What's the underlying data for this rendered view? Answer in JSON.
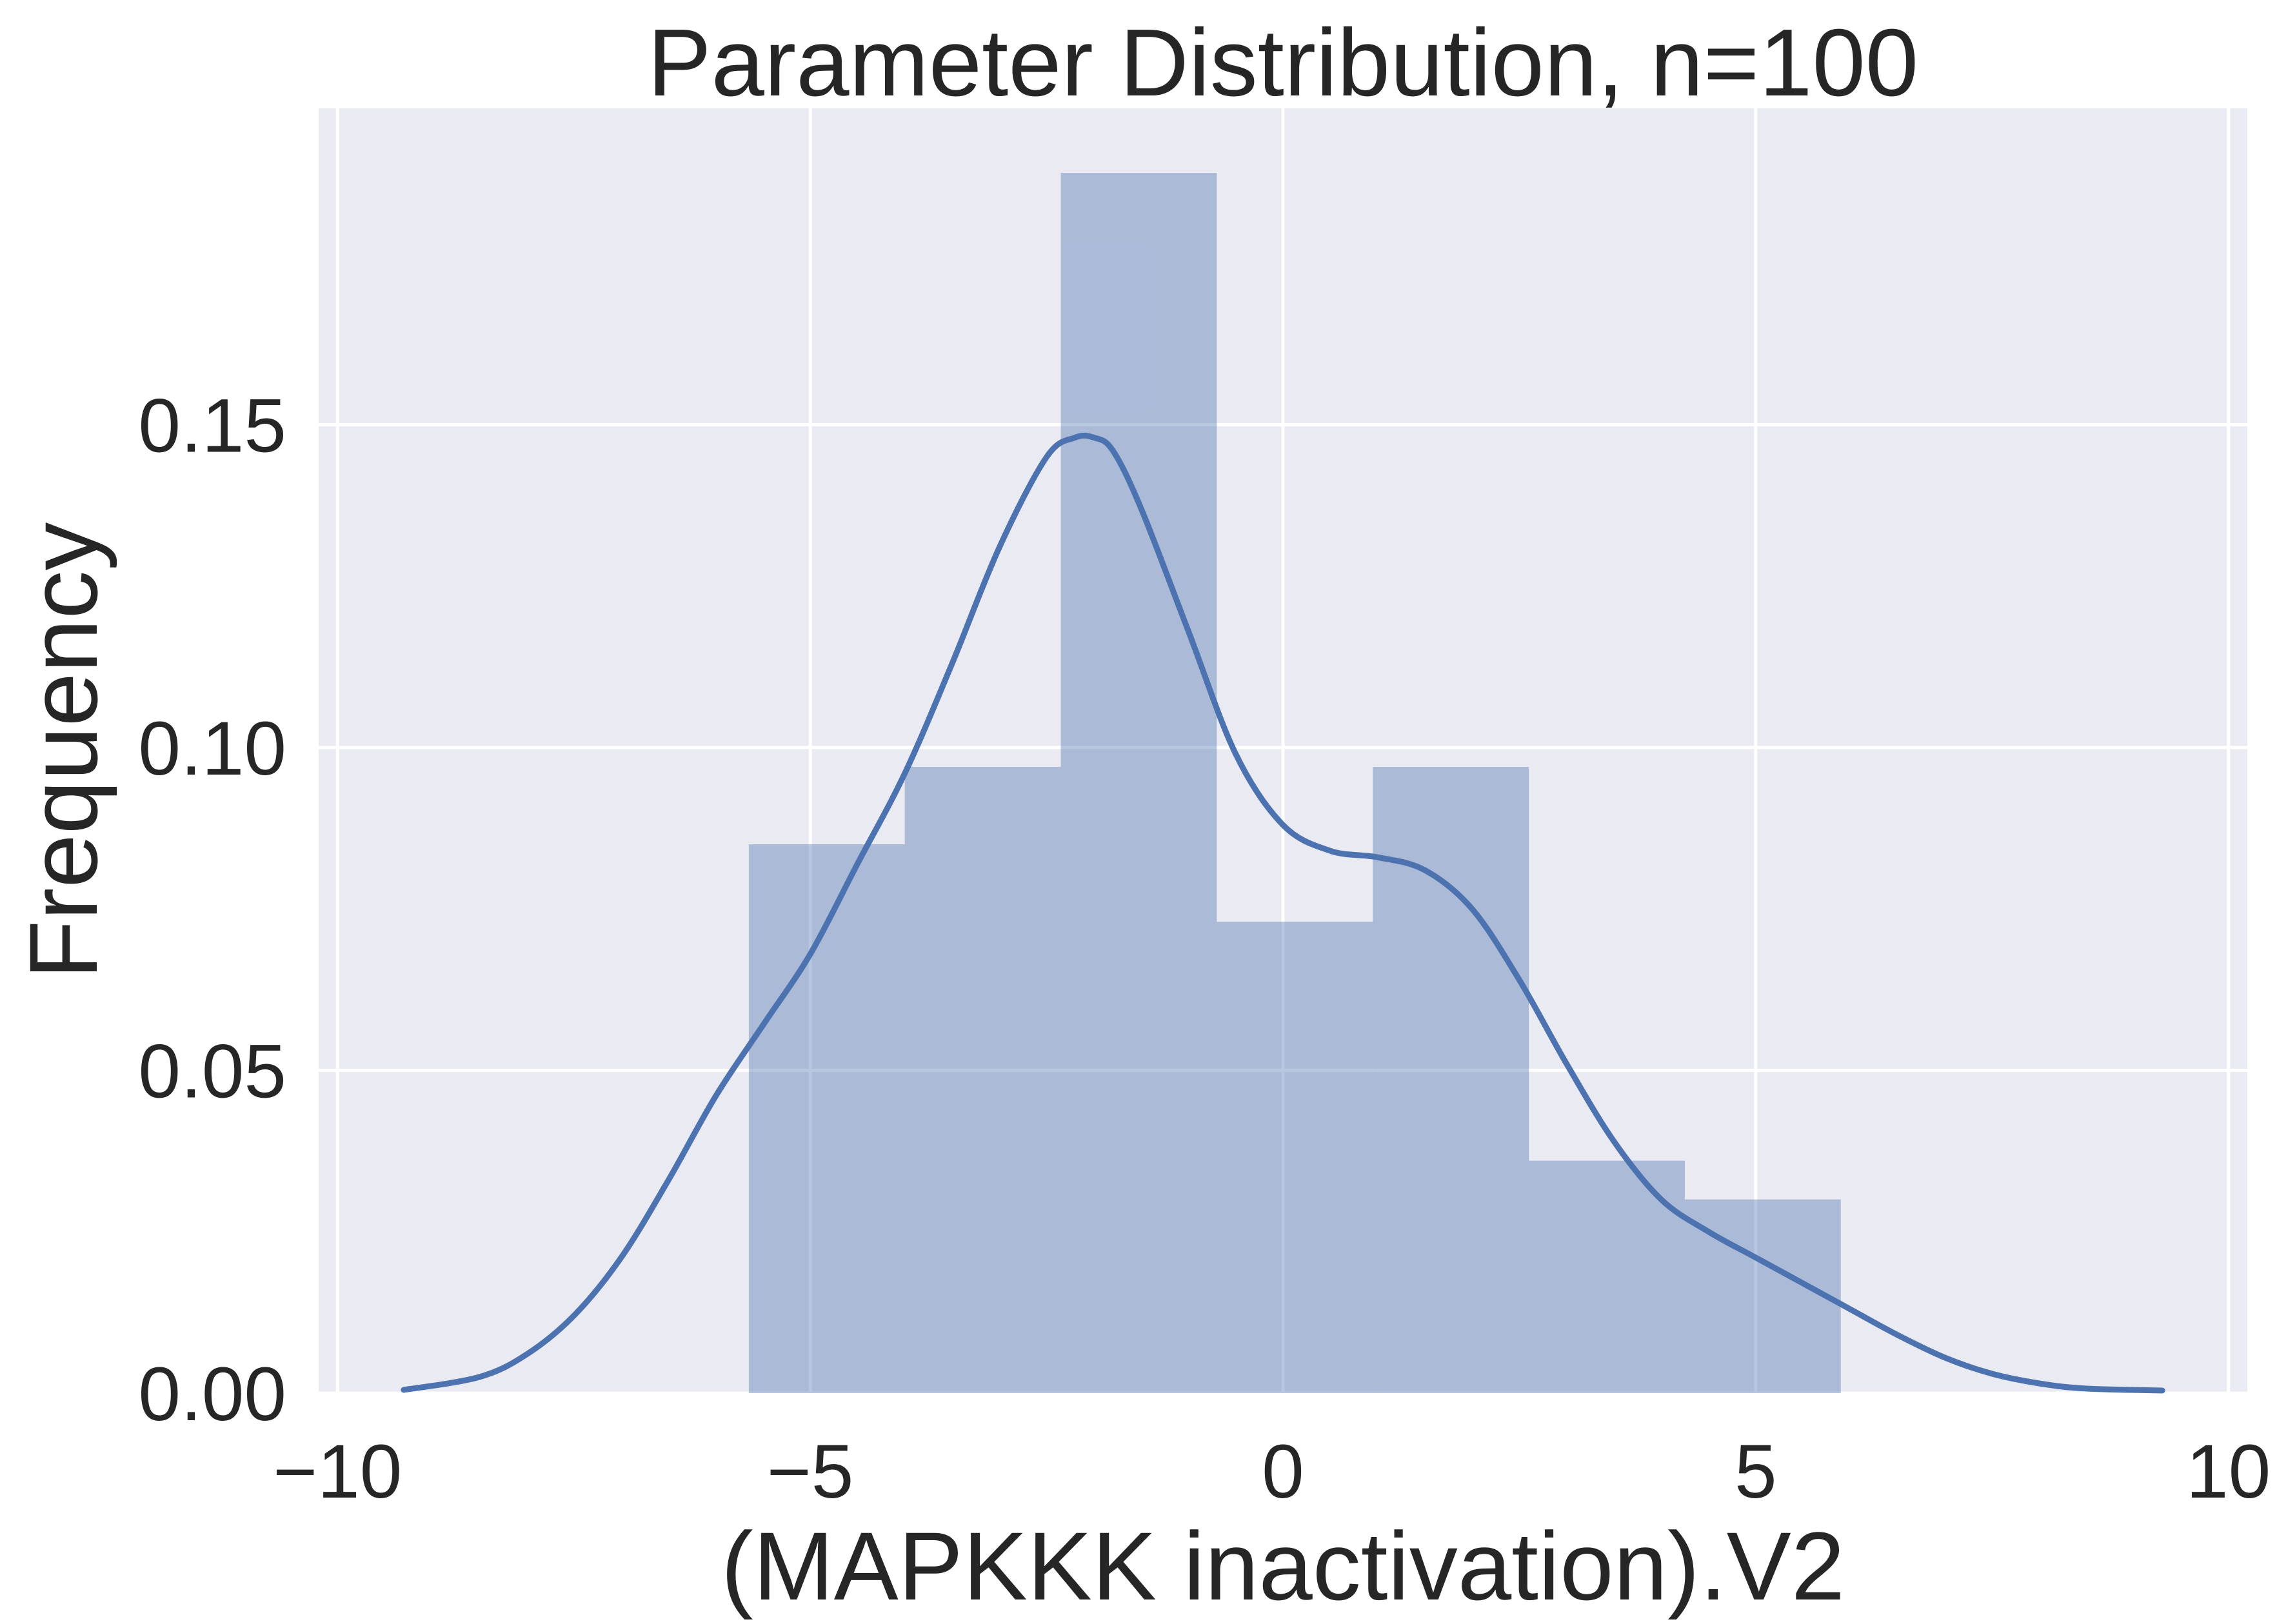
{
  "chart_data": {
    "type": "bar",
    "title": "Parameter Distribution, n=100",
    "xlabel": "(MAPKKK inactivation).V2",
    "ylabel": "Frequency",
    "xlim": [
      -10.2,
      10.2
    ],
    "ylim": [
      0,
      0.199
    ],
    "xticks": [
      -10,
      -5,
      0,
      5,
      10
    ],
    "xtick_labels": [
      "−10",
      "−5",
      "0",
      "5",
      "10"
    ],
    "yticks": [
      0,
      0.05,
      0.1,
      0.15
    ],
    "ytick_labels": [
      "0.00",
      "0.05",
      "0.10",
      "0.15"
    ],
    "grid": true,
    "histogram": {
      "bin_edges": [
        -5.65,
        -4.0,
        -2.35,
        -0.7,
        0.95,
        2.6,
        4.25,
        5.9
      ],
      "values": [
        0.085,
        0.097,
        0.189,
        0.073,
        0.097,
        0.036,
        0.03
      ]
    },
    "kde": {
      "x": [
        -9.3,
        -8.5,
        -8.0,
        -7.5,
        -7.0,
        -6.5,
        -6.0,
        -5.5,
        -5.0,
        -4.5,
        -4.0,
        -3.5,
        -3.0,
        -2.5,
        -2.2,
        -2.0,
        -1.8,
        -1.5,
        -1.0,
        -0.5,
        0.0,
        0.5,
        1.0,
        1.5,
        2.0,
        2.5,
        3.0,
        3.5,
        4.0,
        4.5,
        5.0,
        5.5,
        6.0,
        6.5,
        7.0,
        7.5,
        8.0,
        8.5,
        9.3
      ],
      "y": [
        0.0005,
        0.0025,
        0.006,
        0.012,
        0.021,
        0.033,
        0.046,
        0.057,
        0.068,
        0.082,
        0.096,
        0.113,
        0.131,
        0.145,
        0.148,
        0.148,
        0.146,
        0.137,
        0.118,
        0.099,
        0.088,
        0.084,
        0.083,
        0.081,
        0.075,
        0.064,
        0.051,
        0.039,
        0.03,
        0.025,
        0.021,
        0.017,
        0.013,
        0.009,
        0.0055,
        0.003,
        0.0015,
        0.0007,
        0.0004
      ]
    },
    "colors": {
      "background": "#eaeaf2",
      "grid": "#ffffff",
      "bars": "#4c72b0",
      "kde": "#4c72b0"
    }
  }
}
